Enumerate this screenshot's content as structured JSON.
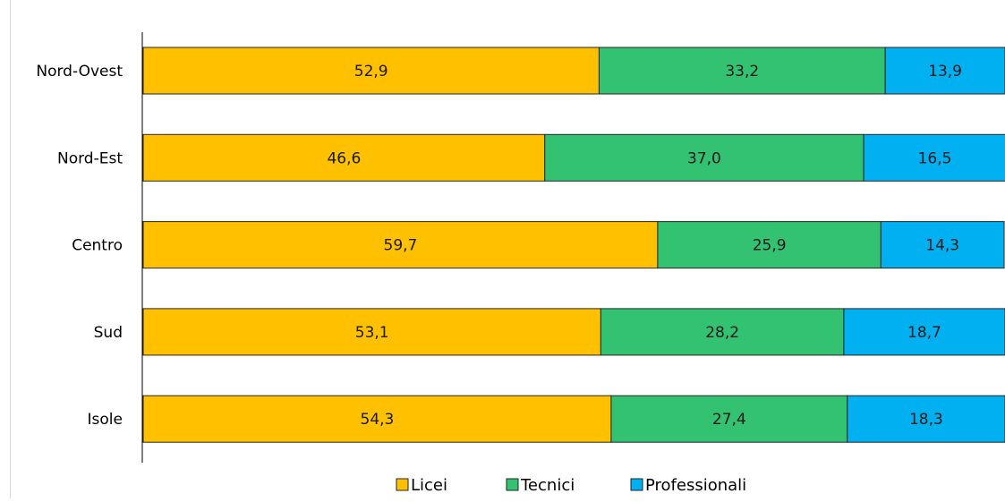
{
  "chart_data": {
    "type": "bar",
    "orientation": "horizontal",
    "stacked": true,
    "categories": [
      "Nord-Ovest",
      "Nord-Est",
      "Centro",
      "Sud",
      "Isole"
    ],
    "series": [
      {
        "name": "Licei",
        "color": "#FFC000",
        "values": [
          52.9,
          46.6,
          59.7,
          53.1,
          54.3
        ],
        "labels": [
          "52,9",
          "46,6",
          "59,7",
          "53,1",
          "54,3"
        ]
      },
      {
        "name": "Tecnici",
        "color": "#33C172",
        "values": [
          33.2,
          37.0,
          25.9,
          28.2,
          27.4
        ],
        "labels": [
          "33,2",
          "37,0",
          "25,9",
          "28,2",
          "27,4"
        ]
      },
      {
        "name": "Professionali",
        "color": "#00B0F0",
        "values": [
          13.9,
          16.5,
          14.3,
          18.7,
          18.3
        ],
        "labels": [
          "13,9",
          "16,5",
          "14,3",
          "18,7",
          "18,3"
        ]
      }
    ],
    "xlim": [
      0,
      100
    ],
    "grid": false,
    "legend_position": "bottom",
    "title": "",
    "xlabel": "",
    "ylabel": ""
  }
}
